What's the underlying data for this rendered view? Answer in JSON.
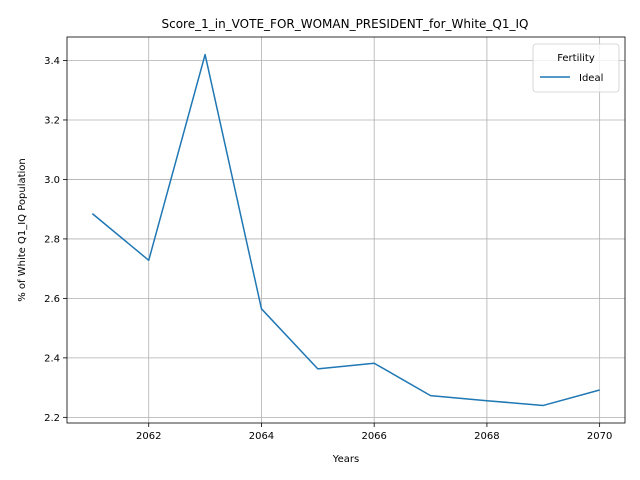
{
  "chart_data": {
    "type": "line",
    "title": "Score_1_in_VOTE_FOR_WOMAN_PRESIDENT_for_White_Q1_IQ",
    "xlabel": "Years",
    "ylabel": "% of White Q1_IQ Population",
    "x": [
      2061,
      2062,
      2063,
      2064,
      2065,
      2066,
      2067,
      2068,
      2069,
      2070
    ],
    "series": [
      {
        "name": "Ideal",
        "color": "#1f77b4",
        "values": [
          2.885,
          2.728,
          3.42,
          2.565,
          2.363,
          2.382,
          2.273,
          2.256,
          2.24,
          2.292
        ]
      }
    ],
    "xlim": [
      2060.55,
      2070.45
    ],
    "ylim": [
      2.181,
      3.479
    ],
    "xticks": [
      2062,
      2064,
      2066,
      2068,
      2070
    ],
    "xtick_labels": [
      "2062",
      "2064",
      "2066",
      "2068",
      "2070"
    ],
    "yticks": [
      2.2,
      2.4,
      2.6,
      2.8,
      3.0,
      3.2,
      3.4
    ],
    "ytick_labels": [
      "2.2",
      "2.4",
      "2.6",
      "2.8",
      "3.0",
      "3.2",
      "3.4"
    ],
    "grid": true,
    "legend": {
      "title": "Fertility",
      "position": "top-right"
    }
  }
}
